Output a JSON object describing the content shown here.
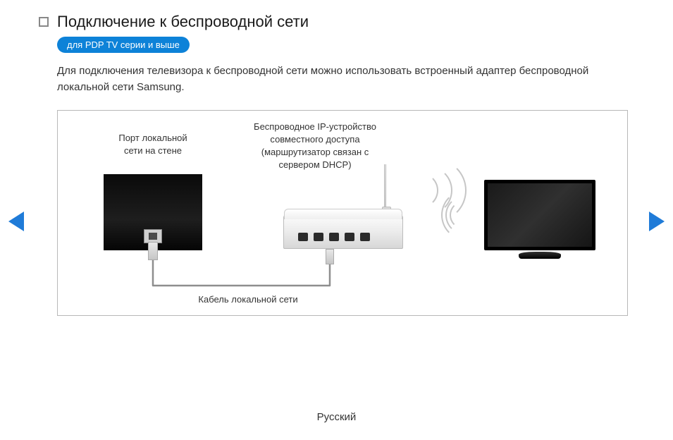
{
  "header": {
    "title": "Подключение к беспроводной сети",
    "badge": "для PDP TV серии и выше"
  },
  "description": "Для подключения телевизора к беспроводной сети можно использовать встроенный адаптер беспроводной локальной сети Samsung.",
  "diagram": {
    "wall_label": "Порт локальной\nсети на стене",
    "router_label": "Беспроводное IP-устройство\nсовместного доступа\n(маршрутизатор связан с\nсервером DHCP)",
    "cable_label": "Кабель локальной сети",
    "colors": {
      "border": "#b8b8b8",
      "wall_bg": "#0a0a0a",
      "router_bg": "#ececec",
      "tv_bg": "#000000",
      "wifi_arc": "#c6c6c6",
      "cable": "#8e8e8e"
    }
  },
  "nav": {
    "arrow_color": "#1f7bd8"
  },
  "footer": {
    "language": "Русский"
  },
  "badge_style": {
    "bg": "#0d82d8",
    "fg": "#ffffff"
  }
}
